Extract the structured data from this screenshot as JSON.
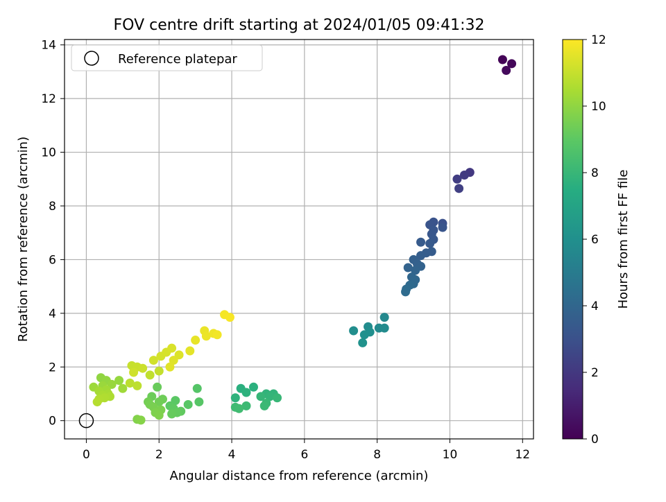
{
  "chart_data": {
    "type": "scatter",
    "title": "FOV centre drift starting at 2024/01/05 09:41:32",
    "xlabel": "Angular distance from reference (arcmin)",
    "ylabel": "Rotation from reference (arcmin)",
    "xlim": [
      -0.6,
      12.3
    ],
    "ylim": [
      -0.68,
      14.2
    ],
    "xticks": [
      0,
      2,
      4,
      6,
      8,
      10,
      12
    ],
    "yticks": [
      0,
      2,
      4,
      6,
      8,
      10,
      12,
      14
    ],
    "grid": true,
    "legend": {
      "placement": "top-left",
      "entries": [
        "Reference platepar"
      ]
    },
    "reference_point": {
      "x": 0,
      "y": 0
    },
    "colorbar": {
      "label": "Hours from first FF file",
      "min": 0,
      "max": 12,
      "ticks": [
        0,
        2,
        4,
        6,
        8,
        10,
        12
      ],
      "colormap": "viridis"
    },
    "series": [
      {
        "points": [
          {
            "x": 11.45,
            "y": 13.45,
            "c": 0.1
          },
          {
            "x": 11.7,
            "y": 13.3,
            "c": 0.2
          },
          {
            "x": 11.55,
            "y": 13.05,
            "c": 0.3
          },
          {
            "x": 10.55,
            "y": 9.25,
            "c": 2.0
          },
          {
            "x": 10.4,
            "y": 9.15,
            "c": 2.1
          },
          {
            "x": 10.2,
            "y": 9.0,
            "c": 2.2
          },
          {
            "x": 10.25,
            "y": 8.65,
            "c": 2.3
          },
          {
            "x": 9.8,
            "y": 7.35,
            "c": 3.0
          },
          {
            "x": 9.55,
            "y": 7.4,
            "c": 3.1
          },
          {
            "x": 9.45,
            "y": 7.3,
            "c": 3.15
          },
          {
            "x": 9.8,
            "y": 7.2,
            "c": 3.2
          },
          {
            "x": 9.55,
            "y": 7.1,
            "c": 3.25
          },
          {
            "x": 9.5,
            "y": 6.95,
            "c": 3.3
          },
          {
            "x": 9.55,
            "y": 6.75,
            "c": 3.35
          },
          {
            "x": 9.45,
            "y": 6.6,
            "c": 3.4
          },
          {
            "x": 9.2,
            "y": 6.65,
            "c": 3.45
          },
          {
            "x": 9.5,
            "y": 6.3,
            "c": 3.5
          },
          {
            "x": 9.35,
            "y": 6.25,
            "c": 3.55
          },
          {
            "x": 9.2,
            "y": 6.15,
            "c": 3.6
          },
          {
            "x": 9.0,
            "y": 6.0,
            "c": 3.7
          },
          {
            "x": 9.1,
            "y": 5.85,
            "c": 3.75
          },
          {
            "x": 9.2,
            "y": 5.75,
            "c": 3.8
          },
          {
            "x": 8.85,
            "y": 5.7,
            "c": 3.85
          },
          {
            "x": 9.05,
            "y": 5.6,
            "c": 3.9
          },
          {
            "x": 8.95,
            "y": 5.35,
            "c": 4.0
          },
          {
            "x": 9.05,
            "y": 5.25,
            "c": 4.05
          },
          {
            "x": 9.0,
            "y": 5.1,
            "c": 4.1
          },
          {
            "x": 8.9,
            "y": 5.05,
            "c": 4.15
          },
          {
            "x": 8.8,
            "y": 4.9,
            "c": 4.2
          },
          {
            "x": 8.78,
            "y": 4.8,
            "c": 4.25
          },
          {
            "x": 8.2,
            "y": 3.85,
            "c": 5.6
          },
          {
            "x": 8.05,
            "y": 3.45,
            "c": 5.7
          },
          {
            "x": 8.2,
            "y": 3.45,
            "c": 5.75
          },
          {
            "x": 7.75,
            "y": 3.5,
            "c": 5.8
          },
          {
            "x": 7.35,
            "y": 3.35,
            "c": 5.9
          },
          {
            "x": 7.8,
            "y": 3.3,
            "c": 5.95
          },
          {
            "x": 7.65,
            "y": 3.2,
            "c": 6.0
          },
          {
            "x": 7.6,
            "y": 2.9,
            "c": 6.1
          },
          {
            "x": 4.25,
            "y": 1.2,
            "c": 7.6
          },
          {
            "x": 4.6,
            "y": 1.25,
            "c": 7.65
          },
          {
            "x": 4.4,
            "y": 1.05,
            "c": 7.7
          },
          {
            "x": 4.1,
            "y": 0.85,
            "c": 7.75
          },
          {
            "x": 4.95,
            "y": 1.0,
            "c": 7.8
          },
          {
            "x": 5.15,
            "y": 1.0,
            "c": 7.85
          },
          {
            "x": 5.05,
            "y": 0.9,
            "c": 7.9
          },
          {
            "x": 4.8,
            "y": 0.9,
            "c": 7.95
          },
          {
            "x": 5.25,
            "y": 0.85,
            "c": 8.0
          },
          {
            "x": 4.95,
            "y": 0.65,
            "c": 8.05
          },
          {
            "x": 4.9,
            "y": 0.55,
            "c": 8.1
          },
          {
            "x": 4.4,
            "y": 0.55,
            "c": 8.15
          },
          {
            "x": 4.1,
            "y": 0.5,
            "c": 8.2
          },
          {
            "x": 4.2,
            "y": 0.45,
            "c": 8.25
          },
          {
            "x": 3.05,
            "y": 1.2,
            "c": 8.8
          },
          {
            "x": 3.1,
            "y": 0.7,
            "c": 8.85
          },
          {
            "x": 2.8,
            "y": 0.6,
            "c": 8.9
          },
          {
            "x": 2.45,
            "y": 0.75,
            "c": 8.95
          },
          {
            "x": 2.3,
            "y": 0.55,
            "c": 9.0
          },
          {
            "x": 2.4,
            "y": 0.45,
            "c": 9.05
          },
          {
            "x": 2.6,
            "y": 0.35,
            "c": 9.1
          },
          {
            "x": 2.5,
            "y": 0.3,
            "c": 9.15
          },
          {
            "x": 2.35,
            "y": 0.25,
            "c": 9.2
          },
          {
            "x": 1.95,
            "y": 1.25,
            "c": 9.25
          },
          {
            "x": 1.8,
            "y": 0.9,
            "c": 9.3
          },
          {
            "x": 2.1,
            "y": 0.8,
            "c": 9.35
          },
          {
            "x": 2.0,
            "y": 0.7,
            "c": 9.4
          },
          {
            "x": 1.7,
            "y": 0.7,
            "c": 9.45
          },
          {
            "x": 1.75,
            "y": 0.6,
            "c": 9.5
          },
          {
            "x": 1.85,
            "y": 0.5,
            "c": 9.55
          },
          {
            "x": 2.05,
            "y": 0.4,
            "c": 9.6
          },
          {
            "x": 1.9,
            "y": 0.3,
            "c": 9.65
          },
          {
            "x": 2.0,
            "y": 0.2,
            "c": 9.7
          },
          {
            "x": 1.4,
            "y": 0.05,
            "c": 9.75
          },
          {
            "x": 1.5,
            "y": 0.02,
            "c": 9.8
          },
          {
            "x": 0.4,
            "y": 1.6,
            "c": 10.0
          },
          {
            "x": 0.55,
            "y": 1.5,
            "c": 10.05
          },
          {
            "x": 0.9,
            "y": 1.5,
            "c": 10.1
          },
          {
            "x": 0.7,
            "y": 1.35,
            "c": 10.15
          },
          {
            "x": 0.45,
            "y": 1.3,
            "c": 10.2
          },
          {
            "x": 0.2,
            "y": 1.25,
            "c": 10.25
          },
          {
            "x": 1.0,
            "y": 1.2,
            "c": 10.3
          },
          {
            "x": 0.55,
            "y": 1.15,
            "c": 10.35
          },
          {
            "x": 0.35,
            "y": 1.1,
            "c": 10.4
          },
          {
            "x": 0.6,
            "y": 1.0,
            "c": 10.45
          },
          {
            "x": 0.45,
            "y": 0.95,
            "c": 10.5
          },
          {
            "x": 0.65,
            "y": 0.9,
            "c": 10.55
          },
          {
            "x": 0.5,
            "y": 0.85,
            "c": 10.6
          },
          {
            "x": 0.35,
            "y": 0.8,
            "c": 10.65
          },
          {
            "x": 0.3,
            "y": 0.7,
            "c": 10.7
          },
          {
            "x": 1.2,
            "y": 1.4,
            "c": 10.8
          },
          {
            "x": 1.4,
            "y": 1.3,
            "c": 10.85
          },
          {
            "x": 1.75,
            "y": 1.7,
            "c": 10.9
          },
          {
            "x": 2.0,
            "y": 1.85,
            "c": 10.95
          },
          {
            "x": 1.25,
            "y": 2.05,
            "c": 11.0
          },
          {
            "x": 1.4,
            "y": 2.0,
            "c": 11.05
          },
          {
            "x": 1.55,
            "y": 1.95,
            "c": 11.1
          },
          {
            "x": 1.3,
            "y": 1.8,
            "c": 11.15
          },
          {
            "x": 1.85,
            "y": 2.25,
            "c": 11.2
          },
          {
            "x": 2.05,
            "y": 2.4,
            "c": 11.25
          },
          {
            "x": 2.2,
            "y": 2.55,
            "c": 11.3
          },
          {
            "x": 2.35,
            "y": 2.7,
            "c": 11.35
          },
          {
            "x": 2.55,
            "y": 2.45,
            "c": 11.4
          },
          {
            "x": 2.4,
            "y": 2.25,
            "c": 11.45
          },
          {
            "x": 2.3,
            "y": 2.0,
            "c": 11.5
          },
          {
            "x": 2.85,
            "y": 2.6,
            "c": 11.55
          },
          {
            "x": 3.0,
            "y": 3.0,
            "c": 11.6
          },
          {
            "x": 3.25,
            "y": 3.35,
            "c": 11.65
          },
          {
            "x": 3.3,
            "y": 3.15,
            "c": 11.7
          },
          {
            "x": 3.5,
            "y": 3.25,
            "c": 11.75
          },
          {
            "x": 3.6,
            "y": 3.2,
            "c": 11.8
          },
          {
            "x": 3.8,
            "y": 3.95,
            "c": 11.85
          },
          {
            "x": 3.95,
            "y": 3.85,
            "c": 11.9
          }
        ]
      }
    ]
  }
}
